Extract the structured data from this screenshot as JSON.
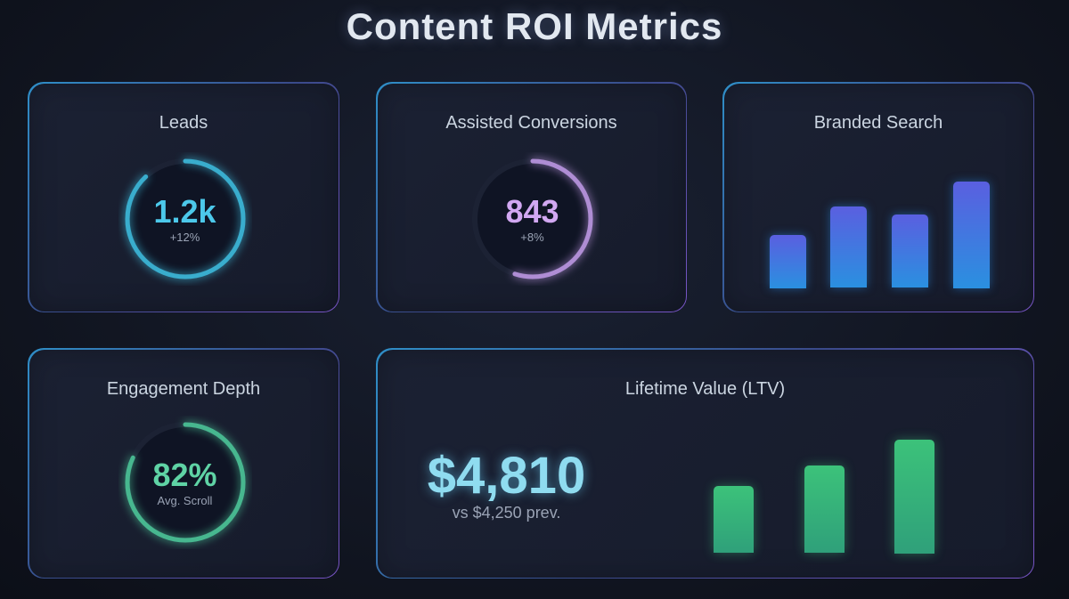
{
  "title": "Content ROI Metrics",
  "cards": {
    "leads": {
      "title": "Leads",
      "value": "1.2k",
      "sub": "+12%",
      "progress": 0.88,
      "color": "#3fc6e8"
    },
    "conversions": {
      "title": "Assisted Conversions",
      "value": "843",
      "sub": "+8%",
      "progress": 0.55,
      "color": "#c9a0f0"
    },
    "branded": {
      "title": "Branded Search",
      "bars": [
        50,
        76,
        69,
        100
      ],
      "color_top": "#5a5fe0",
      "color_bottom": "#2a90e0"
    },
    "engagement": {
      "title": "Engagement Depth",
      "value": "82%",
      "sub": "Avg. Scroll",
      "progress": 0.82,
      "color": "#4fd1a0"
    },
    "ltv": {
      "title": "Lifetime Value (LTV)",
      "value": "$4,810",
      "sub": "vs $4,250 prev.",
      "bars": [
        59,
        77,
        100
      ],
      "color": "#3ab878"
    }
  }
}
